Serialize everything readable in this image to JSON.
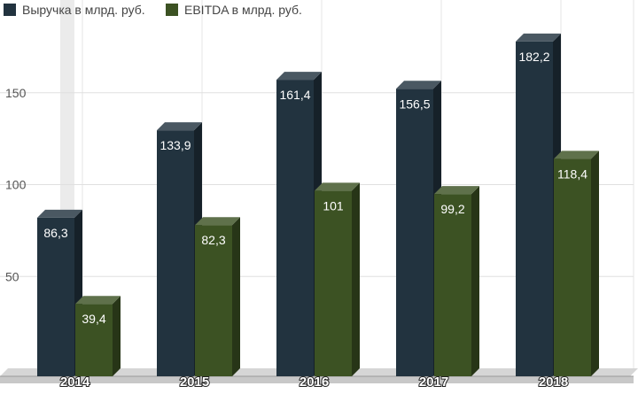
{
  "chart_data": {
    "type": "bar",
    "categories": [
      "2014",
      "2015",
      "2016",
      "2017",
      "2018"
    ],
    "series": [
      {
        "name": "Выручка в млрд. руб.",
        "values": [
          86.3,
          133.9,
          161.4,
          156.5,
          182.2
        ],
        "labels": [
          "86,3",
          "133,9",
          "161,4",
          "156,5",
          "182,2"
        ],
        "color": "#22333f"
      },
      {
        "name": "EBITDA в млрд. руб.",
        "values": [
          39.4,
          82.3,
          101,
          99.2,
          118.4
        ],
        "labels": [
          "39,4",
          "82,3",
          "101",
          "99,2",
          "118,4"
        ],
        "color": "#3c5223"
      }
    ],
    "yticks": [
      50,
      100,
      150
    ],
    "ylim": [
      0,
      200
    ],
    "grid": true,
    "legend": "top-left",
    "style": "3d-columns"
  }
}
